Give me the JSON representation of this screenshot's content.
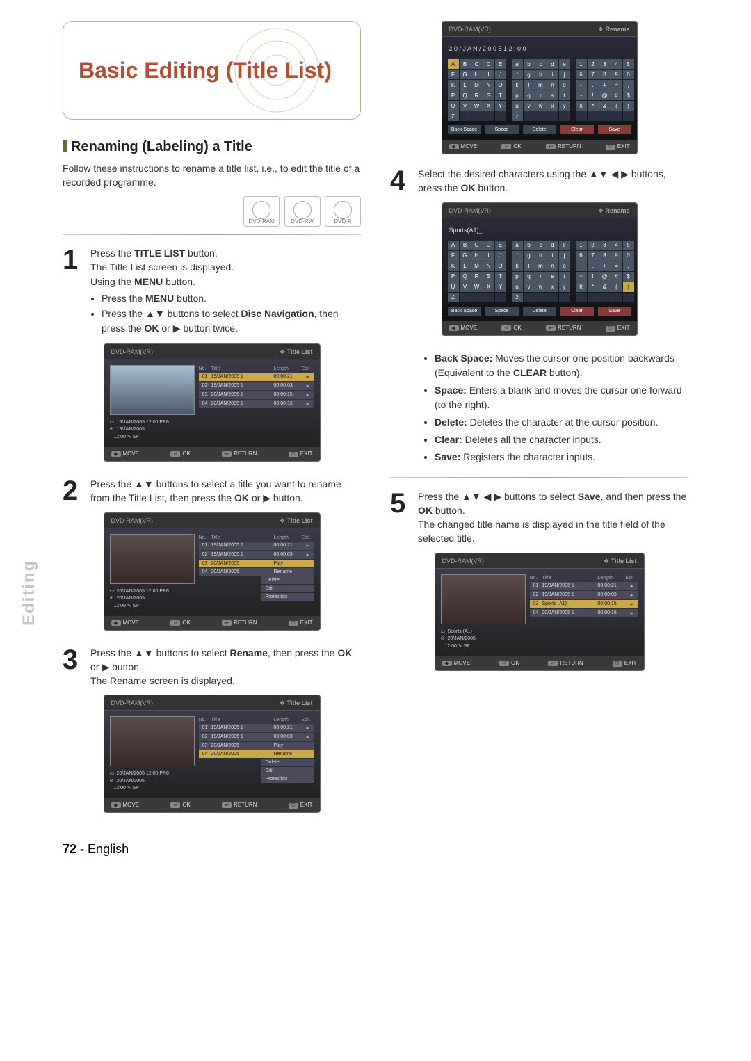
{
  "header_title": "Basic Editing (Title List)",
  "section_title": "Renaming (Labeling) a Title",
  "intro": "Follow these instructions to rename a title list, i.e., to edit the title of a recorded programme.",
  "disc_labels": [
    "DVD-RAM",
    "DVD-RW",
    "DVD-R"
  ],
  "side_label": "Editing",
  "page_number": "72 -",
  "page_lang": "English",
  "steps": {
    "s1": {
      "num": "1",
      "line1": "Press the ",
      "bold1": "TITLE LIST",
      "line1b": " button.",
      "line2": "The Title List screen is displayed.",
      "line3": "Using the ",
      "bold3": "MENU",
      "line3b": " button.",
      "b1a": "Press the ",
      "b1b": "MENU",
      "b1c": " button.",
      "b2a": "Press the ▲▼ buttons to select ",
      "b2b": "Disc Navigation",
      "b2c": ", then press the ",
      "b2d": "OK",
      "b2e": " or ▶ button twice."
    },
    "s2": {
      "num": "2",
      "a": "Press the ▲▼ buttons to select a title you want to rename from the Title List, then press the ",
      "b": "OK",
      "c": " or ▶ button."
    },
    "s3": {
      "num": "3",
      "a": "Press the ▲▼ buttons to select ",
      "b": "Rename",
      "c": ", then press the ",
      "d": "OK",
      "e": " or ▶ button.",
      "f": "The Rename screen is displayed."
    },
    "s4": {
      "num": "4",
      "a": "Select the desired characters using the ▲▼ ◀ ▶ buttons, press the ",
      "b": "OK",
      "c": " button."
    },
    "s5": {
      "num": "5",
      "a": "Press the ▲▼ ◀ ▶ buttons to select ",
      "b": "Save",
      "c": ", and then press the ",
      "d": "OK",
      "e": " button.",
      "f": "The changed title name is displayed in the title field of the selected title."
    }
  },
  "bullets": {
    "bs_l": "Back Space:",
    "bs_d": "Moves the cursor one position backwards (Equivalent to the ",
    "bs_b": "CLEAR",
    "bs_d2": " button).",
    "sp_l": "Space:",
    "sp_d": "Enters a blank and moves the cursor one forward (to the right).",
    "de_l": "Delete:",
    "de_d": "Deletes the character at the cursor position.",
    "cl_l": "Clear:",
    "cl_d": "Deletes all the character inputs.",
    "sv_l": "Save:",
    "sv_d": "Registers the character inputs."
  },
  "screens": {
    "disc_model": "DVD-RAM(VR)",
    "title_list": "Title List",
    "rename": "Rename",
    "hdr_no": "No.",
    "hdr_title": "Title",
    "hdr_len": "Length",
    "hdr_edit": "Edit",
    "rows": [
      {
        "no": "01",
        "title": "19/JAN/2005 1",
        "len": "00:00:21"
      },
      {
        "no": "02",
        "title": "19/JAN/2005 1",
        "len": "00:00:03"
      },
      {
        "no": "03",
        "title": "20/JAN/2005 1",
        "len": "00:00:15"
      },
      {
        "no": "04",
        "title": "20/JAN/2005 1",
        "len": "00:00:16"
      }
    ],
    "rows2": [
      {
        "no": "01",
        "title": "19/JAN/2005 1",
        "len": "00:00:21"
      },
      {
        "no": "02",
        "title": "19/JAN/2005 1",
        "len": "00:00:03"
      },
      {
        "no": "03",
        "title": "20/JAN/2005",
        "len": "Play"
      },
      {
        "no": "04",
        "title": "20/JAN/2005",
        "len": "Rename"
      }
    ],
    "rows5": [
      {
        "no": "01",
        "title": "19/JAN/2005 1",
        "len": "00:00:21"
      },
      {
        "no": "02",
        "title": "19/JAN/2005 1",
        "len": "00:00:03"
      },
      {
        "no": "03",
        "title": "Sports (A1)",
        "len": "00:00:15"
      },
      {
        "no": "04",
        "title": "20/JAN/2005 1",
        "len": "00:00:16"
      }
    ],
    "ctx": {
      "play": "Play",
      "rename": "Rename",
      "delete": "Delete",
      "edit": "Edit",
      "protection": "Protection"
    },
    "info1": {
      "l1": "19/JAN/2005 12:00    PR6",
      "l2": "19/JAN/2005",
      "l3": "12:00               ✎ SP"
    },
    "info3": {
      "l1": "20/JAN/2005 12:00    PR6",
      "l2": "20/JAN/2005",
      "l3": "12:00               ✎ SP"
    },
    "info5": {
      "l1": "Sports (A1)",
      "l2": "20/JAN/2005",
      "l3": "12:00               ✎ SP"
    },
    "ft_move": "MOVE",
    "ft_ok": "OK",
    "ft_return": "RETURN",
    "ft_exit": "EXIT",
    "kbd_date": "2 0  /  J A N  /  2 0 0 5   1 2 : 0 0",
    "kbd_sports": "Sports(A1)_",
    "kbd_upper": [
      "A",
      "B",
      "C",
      "D",
      "E",
      "F",
      "G",
      "H",
      "I",
      "J",
      "K",
      "L",
      "M",
      "N",
      "O",
      "P",
      "Q",
      "R",
      "S",
      "T",
      "U",
      "V",
      "W",
      "X",
      "Y",
      "Z"
    ],
    "kbd_lower": [
      "a",
      "b",
      "c",
      "d",
      "e",
      "f",
      "g",
      "h",
      "i",
      "j",
      "k",
      "l",
      "m",
      "n",
      "o",
      "p",
      "q",
      "r",
      "s",
      "t",
      "u",
      "v",
      "w",
      "x",
      "y",
      "z"
    ],
    "kbd_num": [
      "1",
      "2",
      "3",
      "4",
      "5",
      "6",
      "7",
      "8",
      "9",
      "0",
      "-",
      ".",
      "+",
      "=",
      ",",
      "~",
      "!",
      "@",
      "#",
      "$",
      "%",
      "*",
      "&",
      "(",
      ")"
    ],
    "kbd_btns": {
      "back": "Back Space",
      "space": "Space",
      "delete": "Delete",
      "clear": "Clear",
      "save": "Save"
    }
  }
}
